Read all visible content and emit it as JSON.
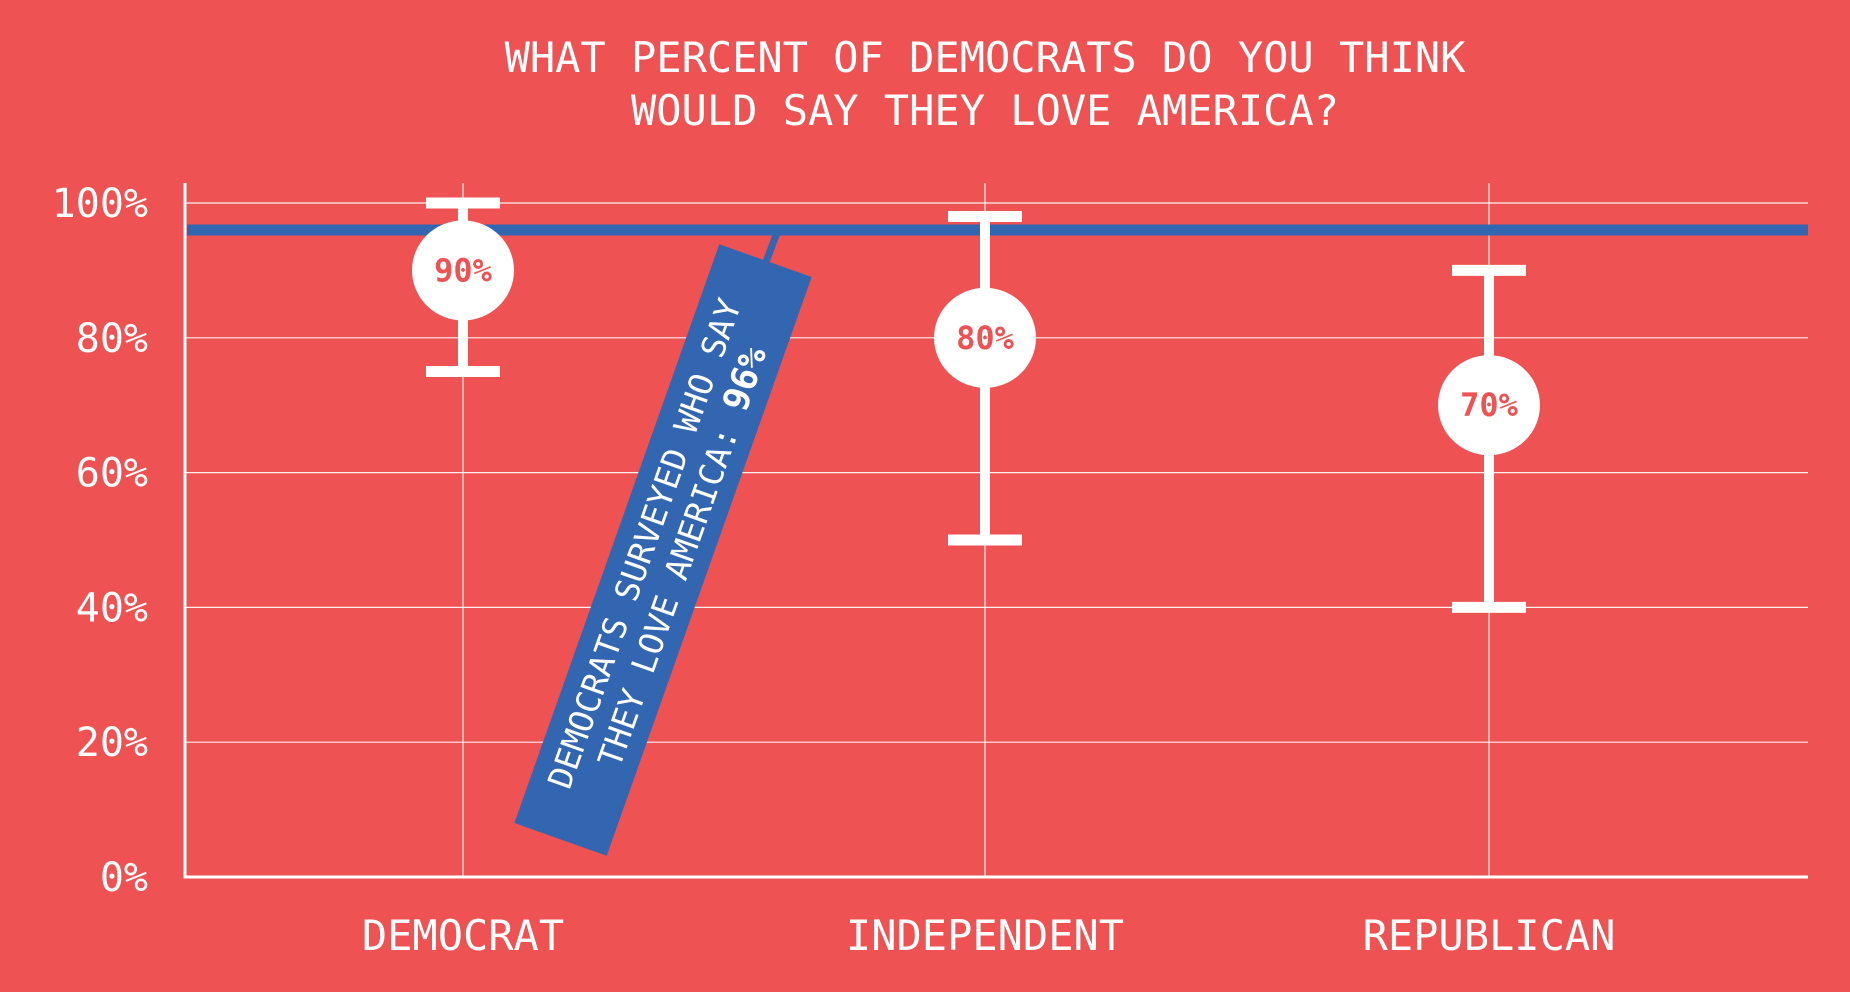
{
  "chart_data": {
    "type": "error-bar",
    "title_lines": [
      "WHAT PERCENT OF DEMOCRATS DO YOU THINK",
      "WOULD SAY THEY LOVE AMERICA?"
    ],
    "categories": [
      "DEMOCRAT",
      "INDEPENDENT",
      "REPUBLICAN"
    ],
    "values": [
      90,
      80,
      70
    ],
    "value_labels": [
      "90%",
      "80%",
      "70%"
    ],
    "low": [
      75,
      50,
      40
    ],
    "high": [
      100,
      98,
      90
    ],
    "ylim": [
      0,
      100
    ],
    "yticks": [
      0,
      20,
      40,
      60,
      80,
      100
    ],
    "ytick_labels": [
      "0%",
      "20%",
      "40%",
      "60%",
      "80%",
      "100%"
    ],
    "grid": true,
    "reference_line": {
      "value": 96,
      "label_lines": [
        "DEMOCRATS SURVEYED WHO SAY",
        "THEY LOVE AMERICA: "
      ],
      "label_value": "96%"
    },
    "colors": {
      "background": "#EF5253",
      "marks": "#FFFFFF",
      "reference": "#3366B0"
    }
  }
}
